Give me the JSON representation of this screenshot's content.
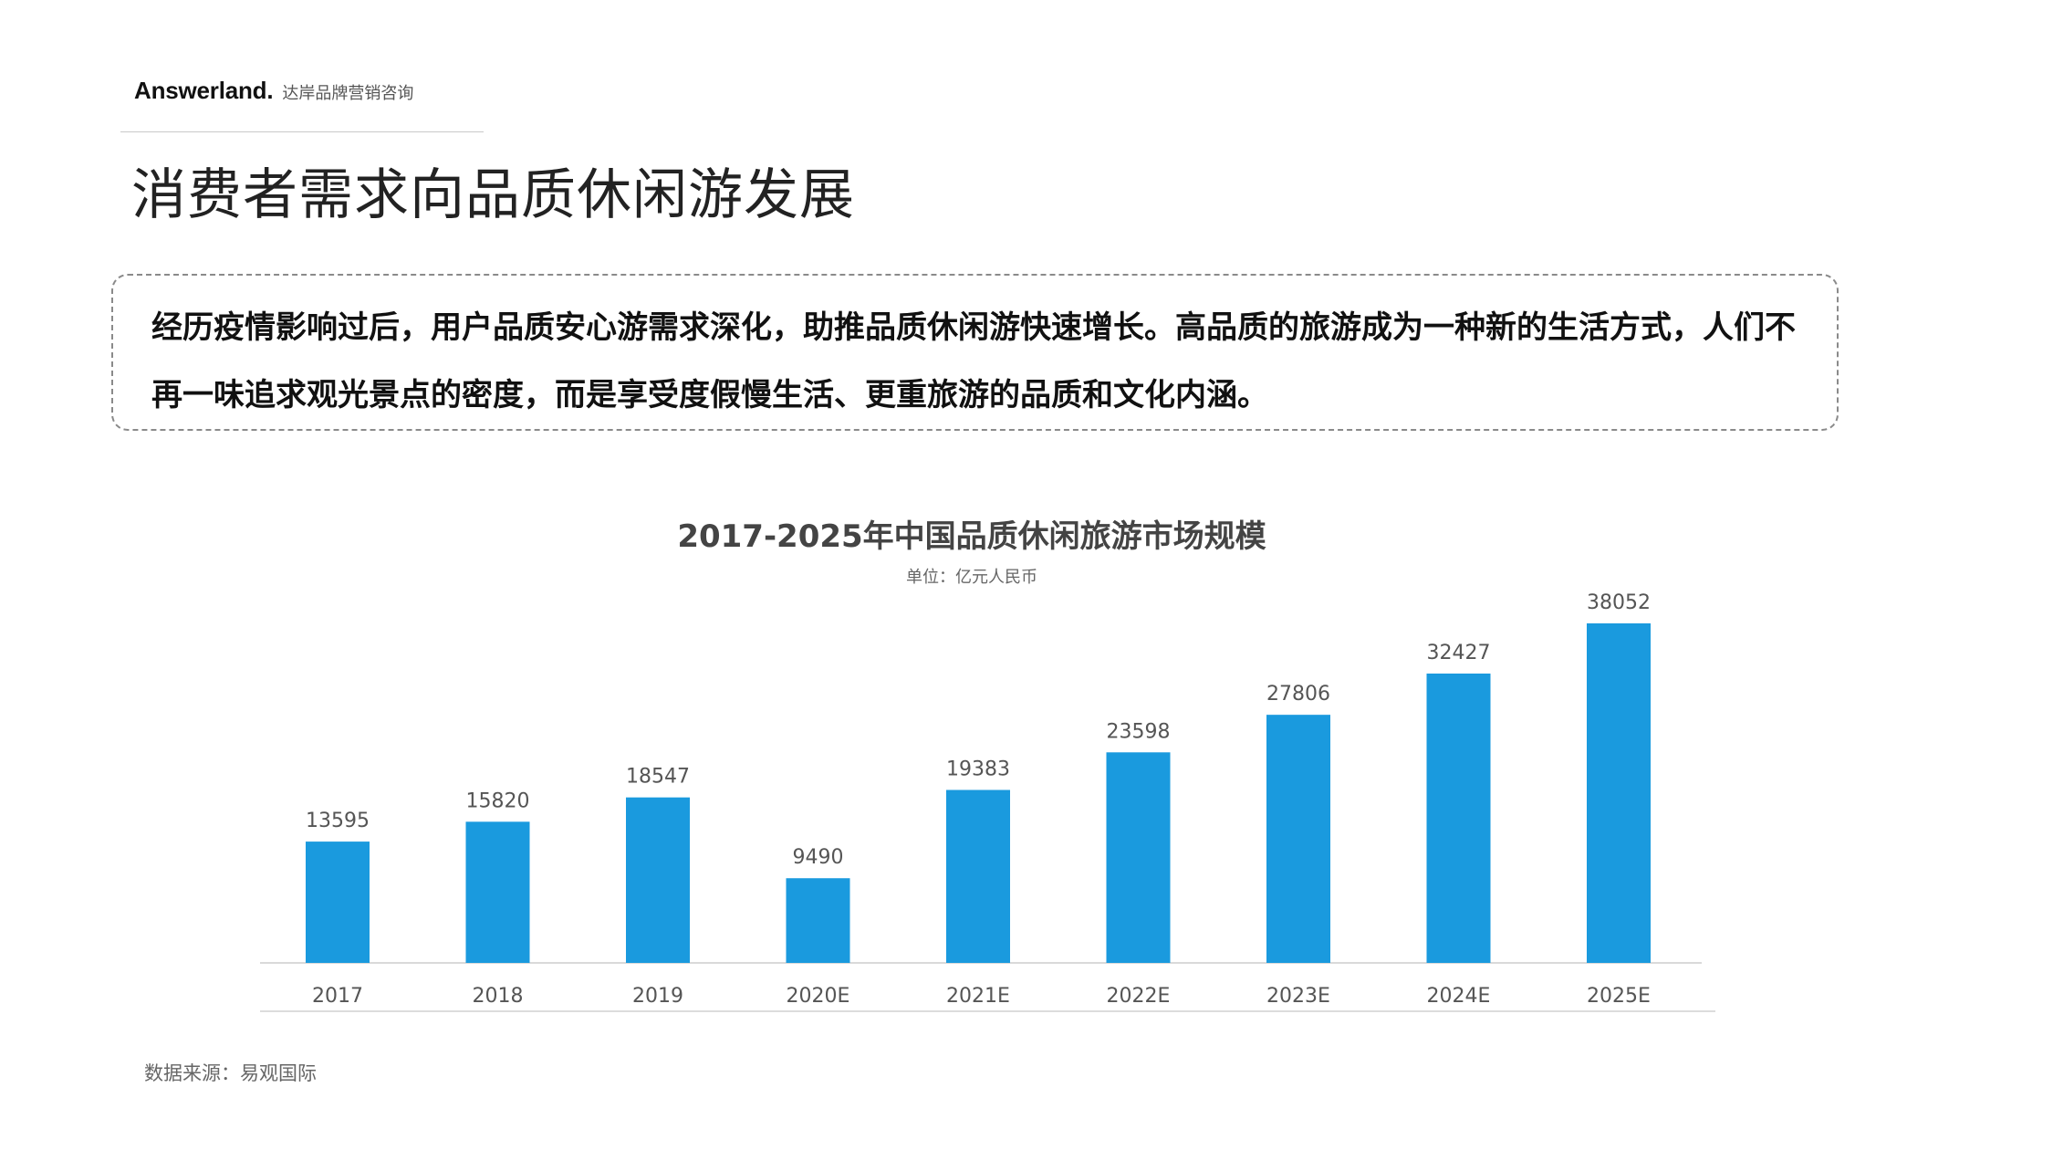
{
  "brand": {
    "name": "Answerland.",
    "tagline": "达岸品牌营销咨询"
  },
  "page": {
    "title": "消费者需求向品质休闲游发展"
  },
  "callout": {
    "text": "经历疫情影响过后，用户品质安心游需求深化，助推品质休闲游快速增长。高品质的旅游成为一种新的生活方式，人们不再一味追求观光景点的密度，而是享受度假慢生活、更重旅游的品质和文化内涵。"
  },
  "chart_data": {
    "type": "bar",
    "title": "2017-2025年中国品质休闲旅游市场规模",
    "unit": "单位：亿元人民币",
    "categories": [
      "2017",
      "2018",
      "2019",
      "2020E",
      "2021E",
      "2022E",
      "2023E",
      "2024E",
      "2025E"
    ],
    "values": [
      13595,
      15820,
      18547,
      9490,
      19383,
      23598,
      27806,
      32427,
      38052
    ],
    "xlabel": "",
    "ylabel": "",
    "ylim": [
      0,
      38052
    ],
    "grid": false,
    "legend": "none",
    "bar_color": "#1a9ade"
  },
  "footer": {
    "source": "数据来源：易观国际"
  }
}
